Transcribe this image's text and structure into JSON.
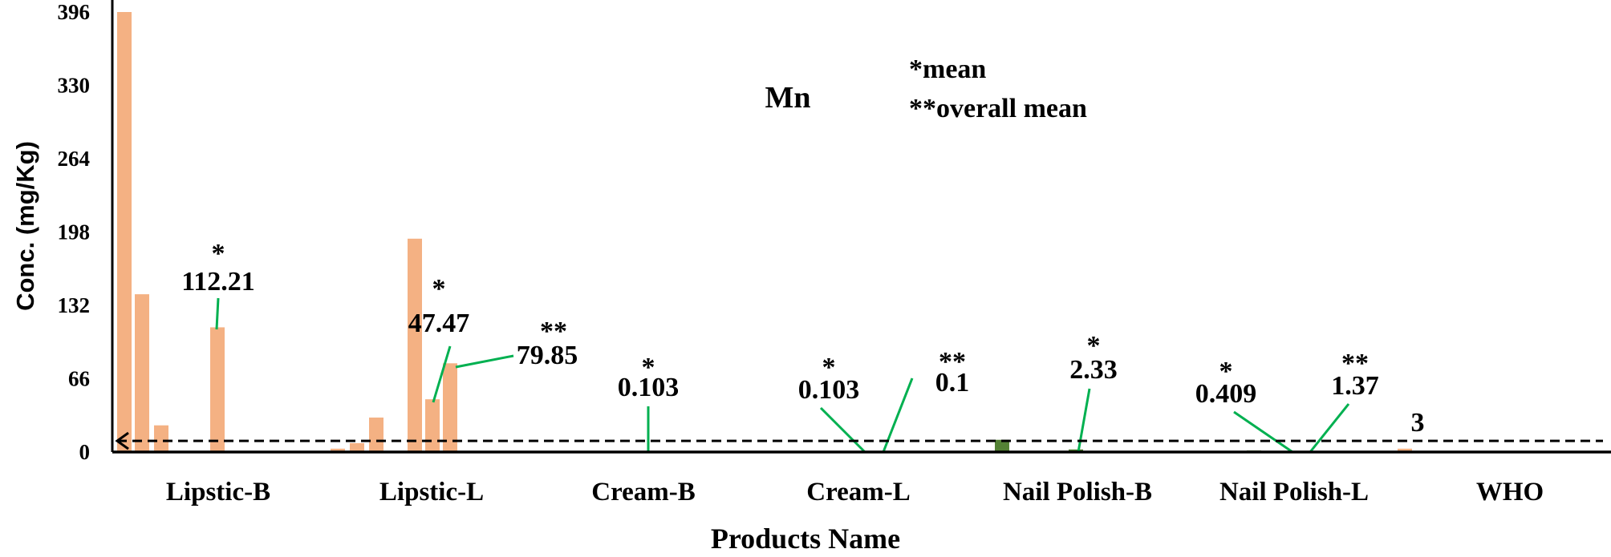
{
  "chart_data": {
    "type": "bar",
    "title": "Mn",
    "xlabel": "Products Name",
    "ylabel": "Conc. (mg/Kg)",
    "ylim": [
      0,
      396
    ],
    "yticks": [
      "0",
      "66",
      "132",
      "198",
      "264",
      "330",
      "396"
    ],
    "grid": false,
    "categories": [
      "Lipstic-B",
      "Lipstic-L",
      "Cream-B",
      "Cream-L",
      "Nail Polish-B",
      "Nail Polish-L",
      "WHO"
    ],
    "legend_notes": [
      "*mean",
      "**overall mean"
    ],
    "reference_line": {
      "value": 10,
      "style": "dashed"
    },
    "colors": {
      "orange": "#f4b183",
      "green": "#548235",
      "leader": "#00b050"
    },
    "groups": [
      {
        "category": "Lipstic-B",
        "bars": [
          {
            "value": 396,
            "color": "orange"
          },
          {
            "value": 142,
            "color": "orange"
          },
          {
            "value": 24,
            "color": "orange"
          },
          {
            "value": 0,
            "color": "orange"
          },
          {
            "value": 0,
            "color": "orange"
          },
          {
            "value": 112.21,
            "color": "orange",
            "label": "mean"
          }
        ]
      },
      {
        "category": "Lipstic-L",
        "bars": [
          {
            "value": 3,
            "color": "orange"
          },
          {
            "value": 8,
            "color": "orange"
          },
          {
            "value": 31,
            "color": "orange"
          },
          {
            "value": 0,
            "color": "orange"
          },
          {
            "value": 192,
            "color": "orange"
          },
          {
            "value": 47.47,
            "color": "orange",
            "label": "mean"
          },
          {
            "value": 79.85,
            "color": "orange",
            "label": "overall mean"
          }
        ]
      },
      {
        "category": "Cream-B",
        "bars": [
          {
            "value": 0.2,
            "color": "green"
          },
          {
            "value": 0.1,
            "color": "green"
          },
          {
            "value": 0.2,
            "color": "green"
          },
          {
            "value": 0.103,
            "color": "green",
            "label": "mean"
          }
        ]
      },
      {
        "category": "Cream-L",
        "bars": [
          {
            "value": 0.1,
            "color": "green"
          },
          {
            "value": 0.2,
            "color": "green"
          },
          {
            "value": 0.1,
            "color": "green"
          },
          {
            "value": 0.103,
            "color": "green",
            "label": "mean"
          },
          {
            "value": 0.1,
            "color": "green",
            "label": "overall mean"
          }
        ]
      },
      {
        "category": "Nail Polish-B",
        "bars": [
          {
            "value": 1,
            "color": "green"
          },
          {
            "value": 11,
            "color": "green"
          },
          {
            "value": 1,
            "color": "green"
          },
          {
            "value": 1,
            "color": "green"
          },
          {
            "value": 2.33,
            "color": "green",
            "label": "mean"
          }
        ]
      },
      {
        "category": "Nail Polish-L",
        "bars": [
          {
            "value": 0.8,
            "color": "green"
          },
          {
            "value": 0.5,
            "color": "orange"
          },
          {
            "value": 0.409,
            "color": "green",
            "label": "mean"
          },
          {
            "value": 1.37,
            "color": "green",
            "label": "overall mean"
          }
        ]
      },
      {
        "category": "WHO",
        "bars": [
          {
            "value": 3,
            "color": "orange"
          }
        ]
      }
    ],
    "annotations": [
      {
        "star": "*",
        "text": "112.21"
      },
      {
        "star": "*",
        "text": "47.47"
      },
      {
        "star": "**",
        "text": "79.85"
      },
      {
        "star": "*",
        "text": "0.103"
      },
      {
        "star": "*",
        "text": "0.103"
      },
      {
        "star": "**",
        "text": "0.1"
      },
      {
        "star": "*",
        "text": "2.33"
      },
      {
        "star": "*",
        "text": "0.409"
      },
      {
        "star": "**",
        "text": "1.37"
      },
      {
        "star": "",
        "text": "3"
      }
    ]
  }
}
